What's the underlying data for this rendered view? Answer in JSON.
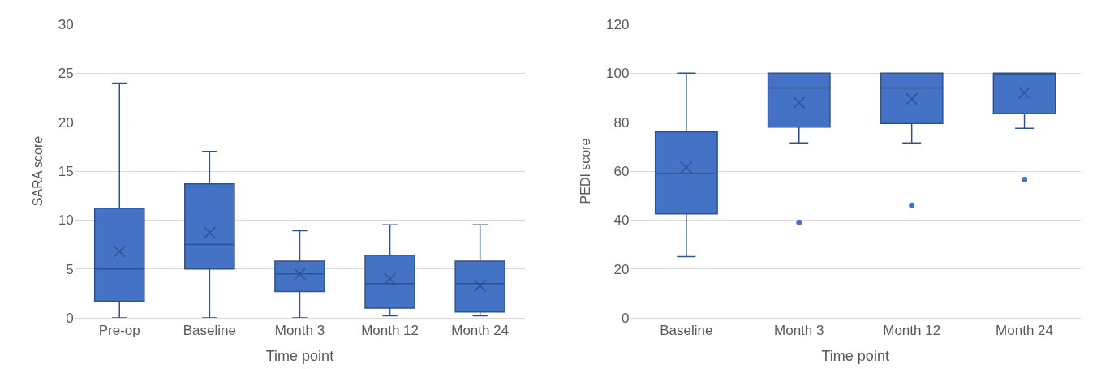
{
  "chart_data": [
    {
      "type": "box",
      "xlabel": "Time point",
      "ylabel": "SARA score",
      "categories": [
        "Pre-op",
        "Baseline",
        "Month 3",
        "Month 12",
        "Month 24"
      ],
      "color": "#4472c4",
      "ylim": [
        0,
        30
      ],
      "yticks": [
        0,
        5,
        10,
        15,
        20,
        25,
        30
      ],
      "grid": "y",
      "marker": "cross",
      "boxes": [
        {
          "low": 0,
          "q1": 1.7,
          "median": 5,
          "q3": 11.2,
          "high": 24,
          "mean": 6.8
        },
        {
          "low": 0,
          "q1": 5,
          "median": 7.5,
          "q3": 13.7,
          "high": 17,
          "mean": 8.7
        },
        {
          "low": 0,
          "q1": 2.7,
          "median": 4.5,
          "q3": 5.8,
          "high": 8.9,
          "mean": 4.5
        },
        {
          "low": 0.2,
          "q1": 1,
          "median": 3.5,
          "q3": 6.4,
          "high": 9.5,
          "mean": 4
        },
        {
          "low": 0.2,
          "q1": 0.6,
          "median": 3.5,
          "q3": 5.8,
          "high": 9.5,
          "mean": 3.3
        }
      ]
    },
    {
      "type": "box",
      "xlabel": "Time point",
      "ylabel": "PEDI score",
      "categories": [
        "Baseline",
        "Month 3",
        "Month 12",
        "Month 24"
      ],
      "color": "#4472c4",
      "ylim": [
        0,
        120
      ],
      "yticks": [
        0,
        20,
        40,
        60,
        80,
        100,
        120
      ],
      "grid": "y",
      "marker": "cross",
      "boxes": [
        {
          "low": 25,
          "q1": 42.5,
          "median": 59,
          "q3": 76,
          "high": 100,
          "mean": 61.5
        },
        {
          "low": 71.5,
          "q1": 78,
          "median": 94,
          "q3": 100,
          "high": 100,
          "mean": 88,
          "outliers": [
            39
          ]
        },
        {
          "low": 71.5,
          "q1": 79.5,
          "median": 94,
          "q3": 100,
          "high": 100,
          "mean": 89.5,
          "outliers": [
            46
          ]
        },
        {
          "low": 77.5,
          "q1": 83.5,
          "median": 100,
          "q3": 100,
          "high": 100,
          "mean": 92,
          "outliers": [
            56.5
          ]
        }
      ]
    }
  ]
}
